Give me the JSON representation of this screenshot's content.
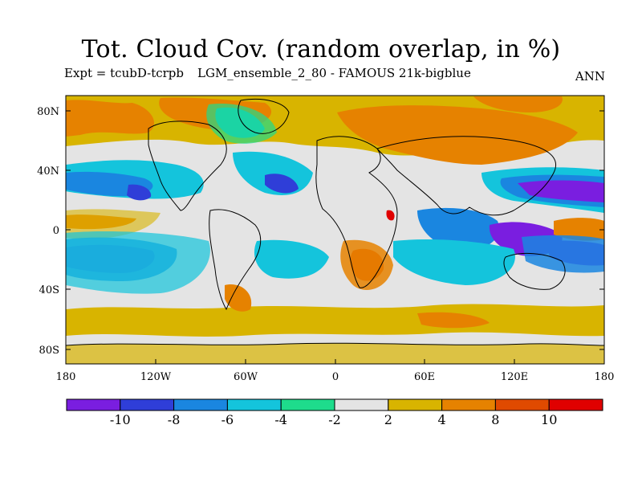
{
  "title": "Tot. Cloud Cov. (random overlap, in %)",
  "subtitle_left": "Expt = tcubD-tcrpb",
  "subtitle_middle": "LGM_ensemble_2_80 - FAMOUS 21k-bigblue",
  "subtitle_right": "ANN",
  "lat_labels": [
    "80N",
    "40N",
    "0",
    "40S",
    "80S"
  ],
  "lon_labels": [
    "180",
    "120W",
    "60W",
    "0",
    "60E",
    "120E",
    "180"
  ],
  "colorbar": {
    "labels": [
      "-10",
      "-8",
      "-6",
      "-4",
      "-2",
      "2",
      "4",
      "8",
      "10"
    ],
    "colors": [
      "#7a1ee0",
      "#2f3ed8",
      "#1a86e0",
      "#14c4dc",
      "#1edc8c",
      "#e4e4e4",
      "#d8b400",
      "#e68200",
      "#e04a00",
      "#e00000"
    ]
  }
}
